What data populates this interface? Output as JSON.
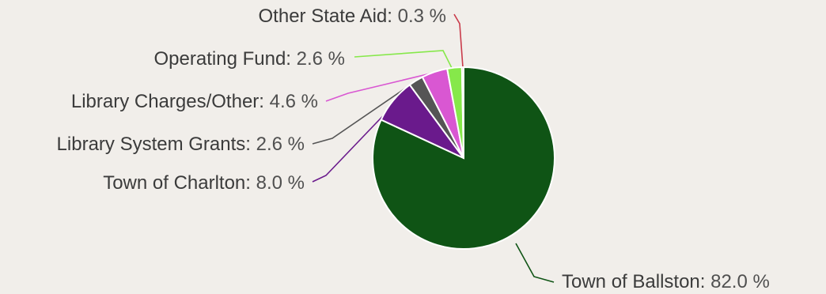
{
  "chart_data": {
    "type": "pie",
    "title": "",
    "slices": [
      {
        "label": "Town of Ballston",
        "value": 82.0,
        "display": "82.0 %",
        "color": "#0f5415"
      },
      {
        "label": "Town of Charlton",
        "value": 8.0,
        "display": "8.0 %",
        "color": "#6a1a8c"
      },
      {
        "label": "Library System Grants",
        "value": 2.6,
        "display": "2.6 %",
        "color": "#555555"
      },
      {
        "label": "Library Charges/Other",
        "value": 4.6,
        "display": "4.6 %",
        "color": "#d957d2"
      },
      {
        "label": "Operating Fund",
        "value": 2.6,
        "display": "2.6 %",
        "color": "#86e84a"
      },
      {
        "label": "Other State Aid",
        "value": 0.3,
        "display": "0.3 %",
        "color": "#c93a4a"
      }
    ]
  }
}
